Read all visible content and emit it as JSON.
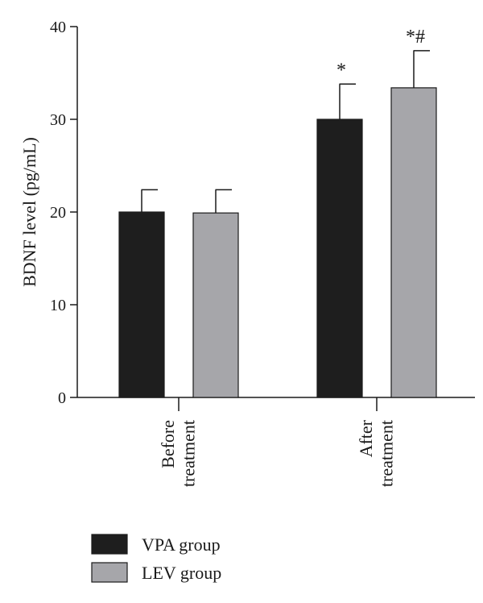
{
  "chart_data": {
    "type": "bar",
    "ylabel": "BDNF level (pg/mL)",
    "ylim": [
      0,
      40
    ],
    "yticks": [
      0,
      10,
      20,
      30,
      40
    ],
    "categories": [
      [
        "Before",
        "treatment"
      ],
      [
        "After",
        "treatment"
      ]
    ],
    "series": [
      {
        "name": "VPA group",
        "color": "#1e1e1e",
        "values": [
          20.0,
          30.0
        ],
        "errors": [
          2.4,
          3.8
        ],
        "annotations": [
          "",
          "*"
        ]
      },
      {
        "name": "LEV group",
        "color": "#a6a6aa",
        "values": [
          19.9,
          33.4
        ],
        "errors": [
          2.5,
          4.0
        ],
        "annotations": [
          "",
          "*#"
        ]
      }
    ],
    "legend_position": "bottom-left",
    "grid": false
  }
}
